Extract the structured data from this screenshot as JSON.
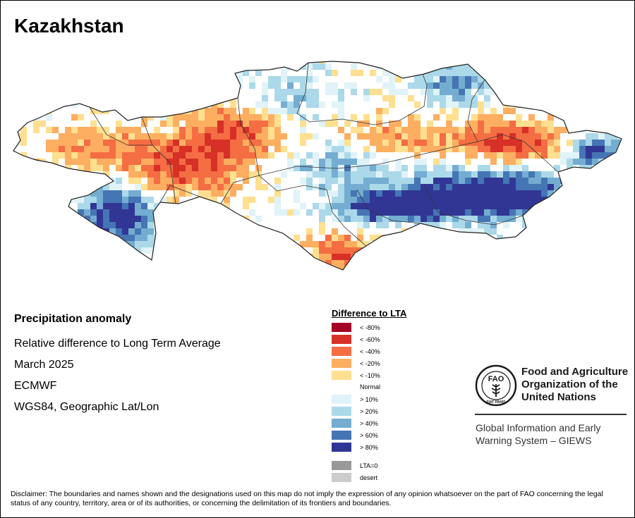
{
  "map": {
    "title": "Kazakhstan",
    "subject": "Precipitation anomaly",
    "metric": "Relative difference to Long Term Average",
    "period": "March 2025",
    "source": "ECMWF",
    "projection": "WGS84, Geographic Lat/Lon"
  },
  "legend": {
    "title": "Difference to LTA",
    "dry": [
      {
        "label": "< -80%",
        "color": "#a50026"
      },
      {
        "label": "< -60%",
        "color": "#d73027"
      },
      {
        "label": "< -40%",
        "color": "#f46d43"
      },
      {
        "label": "< -20%",
        "color": "#fdae61"
      },
      {
        "label": "< -10%",
        "color": "#fee090"
      }
    ],
    "normal_label": "Normal",
    "wet": [
      {
        "label": "> 10%",
        "color": "#e0f3f8"
      },
      {
        "label": "> 20%",
        "color": "#abd9e9"
      },
      {
        "label": "> 40%",
        "color": "#74add1"
      },
      {
        "label": "> 60%",
        "color": "#4575b4"
      },
      {
        "label": "> 80%",
        "color": "#313695"
      }
    ],
    "other": [
      {
        "label": "LTA=0",
        "color": "#999999"
      },
      {
        "label": "desert",
        "color": "#cccccc"
      }
    ]
  },
  "branding": {
    "org_line1": "Food and Agriculture",
    "org_line2": "Organization of the",
    "org_line3": "United Nations",
    "logo_text": "FAO",
    "logo_motto": "FIAT PANIS",
    "system_line1": "Global Information and Early",
    "system_line2": "Warning System – GIEWS"
  },
  "disclaimer": "Disclaimer: The boundaries and names shown and the designations used on this map do not imply the expression of any opinion whatsoever on the part of FAO concerning the legal status of any country, territory, area or of its authorities, or concerning the delimitation of its frontiers and boundaries."
}
